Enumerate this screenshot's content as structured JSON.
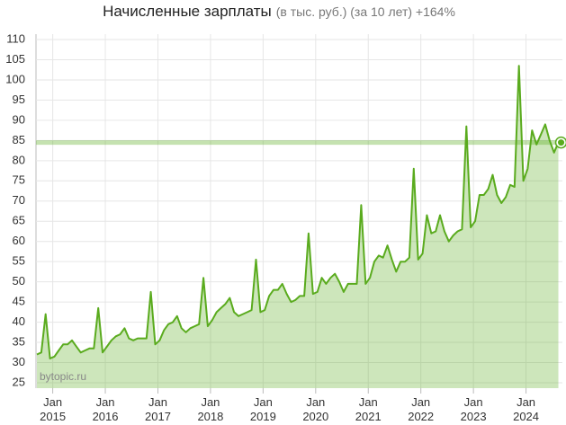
{
  "chart_data": {
    "type": "line",
    "title": "Начисленные зарплаты",
    "subtitle": "(в тыс. руб.) (за 10 лет) +164%",
    "watermark": "bytopic.ru",
    "categories": [
      null,
      null,
      null,
      "Jan\n2015",
      null,
      null,
      null,
      null,
      null,
      null,
      null,
      null,
      null,
      null,
      null,
      "Jan\n2016",
      null,
      null,
      null,
      null,
      null,
      null,
      null,
      null,
      null,
      null,
      null,
      "Jan\n2017",
      null,
      null,
      null,
      null,
      null,
      null,
      null,
      null,
      null,
      null,
      null,
      "Jan\n2018",
      null,
      null,
      null,
      null,
      null,
      null,
      null,
      null,
      null,
      null,
      null,
      "Jan\n2019",
      null,
      null,
      null,
      null,
      null,
      null,
      null,
      null,
      null,
      null,
      null,
      "Jan\n2020",
      null,
      null,
      null,
      null,
      null,
      null,
      null,
      null,
      null,
      null,
      null,
      "Jan\n2021",
      null,
      null,
      null,
      null,
      null,
      null,
      null,
      null,
      null,
      null,
      null,
      "Jan\n2022",
      null,
      null,
      null,
      null,
      null,
      null,
      null,
      null,
      null,
      null,
      null,
      "Jan\n2023",
      null,
      null,
      null,
      null,
      null,
      null,
      null,
      null,
      null,
      null,
      null,
      "Jan\n2024",
      null,
      null,
      null,
      null,
      null,
      null,
      null,
      null
    ],
    "values": [
      32,
      32.5,
      42,
      31,
      31.5,
      33,
      34.5,
      34.5,
      35.5,
      34,
      32.5,
      33,
      33.5,
      33.5,
      43.5,
      32.5,
      34,
      35.5,
      36.5,
      37,
      38.5,
      36,
      35.5,
      36,
      36,
      36,
      47.5,
      34.5,
      35.5,
      38,
      39.5,
      40,
      41.5,
      38.5,
      37.5,
      38.5,
      39,
      39.5,
      51,
      39,
      40.5,
      42.5,
      43.5,
      44.5,
      46,
      42.5,
      41.5,
      42,
      42.5,
      43,
      55.5,
      42.5,
      43,
      46.5,
      48,
      48,
      49.5,
      47,
      45,
      45.5,
      46.5,
      46.5,
      62,
      47,
      47.5,
      51,
      49.5,
      51,
      52,
      50,
      47.5,
      49.5,
      49.5,
      49.5,
      69,
      49.5,
      51,
      55,
      56.5,
      56,
      59,
      55.5,
      52.5,
      55,
      55,
      56,
      78,
      55.5,
      57,
      66.5,
      62,
      62.5,
      66.5,
      62.5,
      60,
      61.5,
      62.5,
      63,
      88.5,
      63.5,
      65,
      71.5,
      71.5,
      73,
      76.5,
      71.5,
      69.5,
      71,
      74,
      73.5,
      103.5,
      75,
      78,
      87.5,
      84,
      86.5,
      89,
      85,
      82,
      84.5
    ],
    "color": "#5aab1e",
    "ylim": [
      25,
      110
    ],
    "yticks": [
      25,
      30,
      35,
      40,
      45,
      50,
      55,
      60,
      65,
      70,
      75,
      80,
      85,
      90,
      95,
      100,
      105,
      110
    ],
    "grid": true
  }
}
